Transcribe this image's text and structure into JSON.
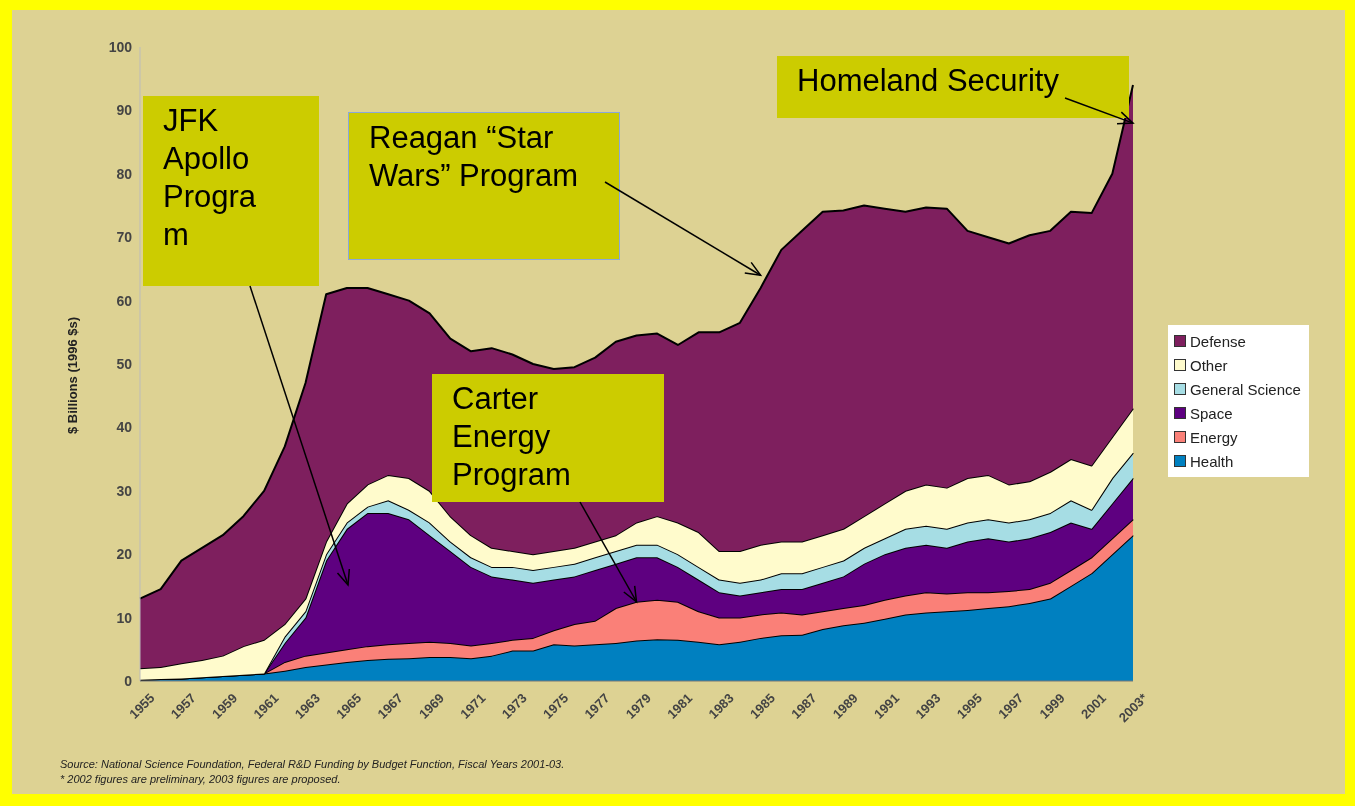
{
  "chart_data": {
    "type": "area",
    "stacked": true,
    "ylabel": "$ Billions (1996 $s)",
    "ylim": [
      0,
      100
    ],
    "yticks": [
      0,
      10,
      20,
      30,
      40,
      50,
      60,
      70,
      80,
      90,
      100
    ],
    "legend": "right",
    "categories": [
      "1955",
      null,
      "1957",
      null,
      "1959",
      null,
      "1961",
      null,
      "1963",
      null,
      "1965",
      null,
      "1967",
      null,
      "1969",
      null,
      "1971",
      null,
      "1973",
      null,
      "1975",
      null,
      "1977",
      null,
      "1979",
      null,
      "1981",
      null,
      "1983",
      null,
      "1985",
      null,
      "1987",
      null,
      "1989",
      null,
      "1991",
      null,
      "1993",
      null,
      "1995",
      null,
      "1997",
      null,
      "1999",
      null,
      "2001",
      null,
      "2003*"
    ],
    "series": [
      {
        "name": "Health",
        "color": "#0080c0",
        "values": [
          0.2,
          0.3,
          0.4,
          0.6,
          0.8,
          1,
          1.2,
          1.6,
          2.2,
          2.6,
          3,
          3.3,
          3.5,
          3.6,
          3.8,
          3.8,
          3.6,
          4,
          4.8,
          4.8,
          5.8,
          5.6,
          5.8,
          6,
          6.4,
          6.6,
          6.5,
          6.2,
          5.8,
          6.2,
          6.8,
          7.2,
          7.3,
          8.2,
          8.8,
          9.2,
          9.8,
          10.5,
          10.8,
          11,
          11.2,
          11.5,
          11.8,
          12.3,
          13,
          15,
          17,
          20,
          23
        ]
      },
      {
        "name": "Energy",
        "color": "#fa8078",
        "values": [
          0,
          0,
          0,
          0,
          0,
          0,
          0,
          1.4,
          1.8,
          1.9,
          2,
          2.2,
          2.3,
          2.4,
          2.4,
          2.2,
          2,
          2,
          1.7,
          2,
          2.2,
          3.4,
          3.7,
          5.5,
          6.1,
          6.2,
          6,
          4.8,
          4.2,
          3.8,
          3.7,
          3.6,
          3.2,
          2.8,
          2.7,
          2.8,
          3,
          3,
          3.2,
          2.8,
          2.8,
          2.5,
          2.4,
          2.2,
          2.5,
          2.5,
          2.5,
          2.5,
          2.5
        ]
      },
      {
        "name": "Space",
        "color": "#5e0080",
        "values": [
          0,
          0,
          0,
          0,
          0,
          0,
          0,
          3,
          6,
          14.5,
          19,
          21,
          20.7,
          19.5,
          16.8,
          14.5,
          12.4,
          10.5,
          9.5,
          8.7,
          8,
          7.5,
          8,
          7,
          7,
          6.7,
          5.5,
          5,
          4,
          3.5,
          3.5,
          3.7,
          4,
          4.5,
          5,
          6.5,
          7.2,
          7.5,
          7.5,
          7.2,
          8,
          8.5,
          7.8,
          8,
          8,
          7.5,
          4.5,
          5.5,
          6.5
        ]
      },
      {
        "name": "General Science",
        "color": "#a6dde4",
        "values": [
          0,
          0,
          0,
          0,
          0,
          0,
          0,
          1,
          1,
          1,
          1,
          1,
          2,
          1.5,
          2,
          1.5,
          1.5,
          1.5,
          2,
          2,
          2,
          2,
          2,
          2,
          2,
          2,
          2,
          2,
          2,
          2,
          2,
          2.5,
          2.5,
          2.5,
          2.5,
          2.5,
          2.5,
          3,
          3,
          3,
          3,
          3,
          3,
          3,
          3,
          3.5,
          3,
          4,
          4
        ]
      },
      {
        "name": "Other",
        "color": "#fffbcc",
        "values": [
          1.8,
          1.9,
          2.4,
          2.7,
          3.2,
          4.5,
          5.3,
          2,
          2,
          2,
          3,
          3.5,
          4,
          5,
          5,
          4,
          3.5,
          3,
          2.5,
          2.5,
          2.5,
          2.5,
          2.5,
          2.5,
          3.5,
          4.5,
          5,
          5.5,
          4.5,
          5,
          5.5,
          5,
          5,
          5,
          5,
          5,
          5.5,
          6,
          6.5,
          6.5,
          7,
          7,
          6,
          6,
          6.5,
          6.5,
          7,
          6.5,
          7
        ]
      },
      {
        "name": "Defense",
        "color": "#7e1f5e",
        "values": [
          11,
          12.3,
          16.2,
          17.7,
          19,
          20.5,
          23.5,
          28,
          34,
          39,
          34,
          31,
          28.5,
          28,
          28,
          28,
          29,
          31.5,
          31,
          30,
          28.7,
          28.5,
          29,
          30.5,
          29.5,
          28.8,
          28,
          31.5,
          34.5,
          36,
          40.5,
          46,
          49,
          51,
          50.2,
          49,
          46.5,
          44,
          43.7,
          44,
          39,
          37.5,
          38,
          38.8,
          38,
          39,
          39.8,
          41.5,
          51
        ]
      }
    ],
    "annotations": [
      {
        "text": "Homeland Security",
        "x": "2003*",
        "y": 88
      },
      {
        "text": "Reagan “Star Wars” Program",
        "x": "1985",
        "y": 64
      },
      "JFK Apollo Program",
      {
        "text": "Carter Energy Program",
        "x": "1979",
        "y": 12.5
      },
      "Source: National Science Foundation, Federal R&D Funding by Budget Function, Fiscal Years 2001-03.",
      "* 2002 figures are preliminary, 2003 figures are proposed."
    ]
  }
}
